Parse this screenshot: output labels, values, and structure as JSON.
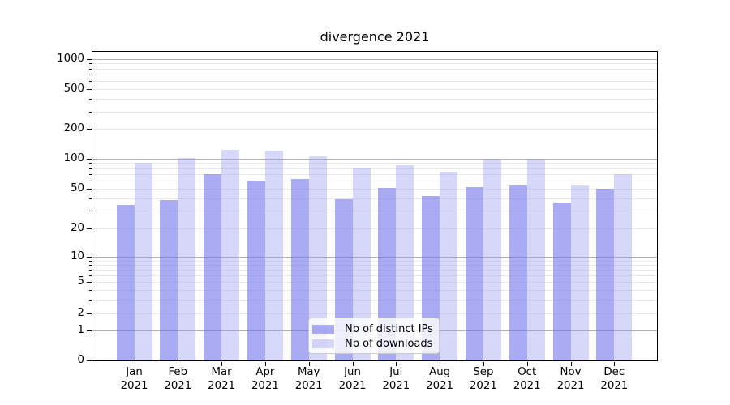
{
  "chart_data": {
    "type": "bar",
    "title": "divergence 2021",
    "y_scale": "symlog-like (log above ~10, compressed linear toward 0)",
    "ylim": [
      0,
      1200
    ],
    "y_ticks": [
      0,
      1,
      2,
      5,
      10,
      20,
      50,
      100,
      200,
      500,
      1000
    ],
    "grid": {
      "major": [
        1,
        10,
        100,
        1000
      ],
      "minor_subs": [
        2,
        3,
        4,
        5,
        6,
        7,
        8,
        9
      ],
      "minor_decades": [
        1,
        10,
        100
      ]
    },
    "categories": [
      {
        "month": "Jan",
        "year": "2021"
      },
      {
        "month": "Feb",
        "year": "2021"
      },
      {
        "month": "Mar",
        "year": "2021"
      },
      {
        "month": "Apr",
        "year": "2021"
      },
      {
        "month": "May",
        "year": "2021"
      },
      {
        "month": "Jun",
        "year": "2021"
      },
      {
        "month": "Jul",
        "year": "2021"
      },
      {
        "month": "Aug",
        "year": "2021"
      },
      {
        "month": "Sep",
        "year": "2021"
      },
      {
        "month": "Oct",
        "year": "2021"
      },
      {
        "month": "Nov",
        "year": "2021"
      },
      {
        "month": "Dec",
        "year": "2021"
      }
    ],
    "series": [
      {
        "name": "Nb of distinct IPs",
        "color": "rgba(110,110,235,0.58)",
        "values": [
          34,
          38,
          70,
          60,
          62,
          39,
          51,
          42,
          52,
          54,
          36,
          50
        ]
      },
      {
        "name": "Nb of downloads",
        "color": "rgba(150,150,238,0.38)",
        "values": [
          90,
          102,
          123,
          120,
          106,
          80,
          85,
          74,
          97,
          97,
          54,
          70
        ]
      }
    ],
    "legend_position": "lower center, inside plot"
  }
}
